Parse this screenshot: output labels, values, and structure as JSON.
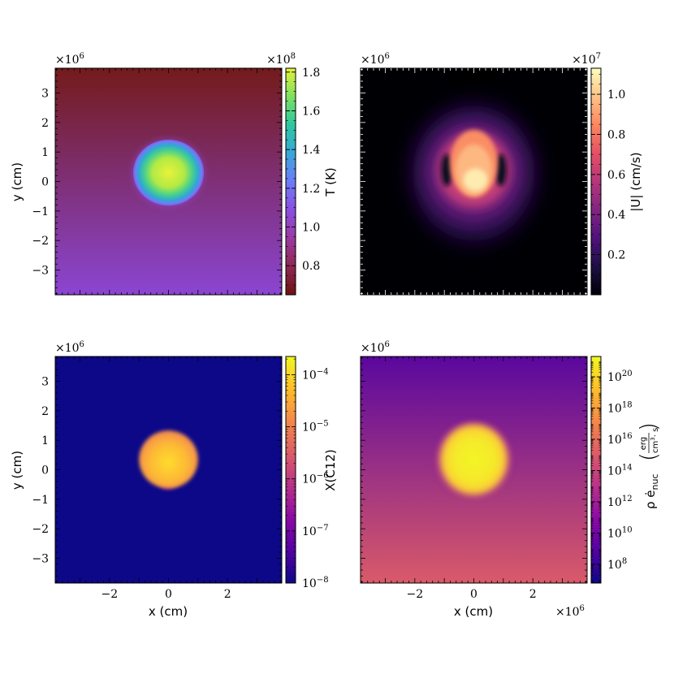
{
  "chart_data": [
    {
      "type": "heatmap",
      "panel": "top-left",
      "quantity": "temperature",
      "x_range": [
        -3.84,
        3.84
      ],
      "y_range": [
        -3.84,
        3.84
      ],
      "x_exponent_label": "",
      "y_exponent_label": "×10",
      "y_exponent_power": "6",
      "ylabel": "y  (cm)",
      "xlabel": "",
      "xticks": [],
      "yticks": [
        "−3",
        "−2",
        "−1",
        "0",
        "1",
        "2",
        "3"
      ],
      "colorbar": {
        "label": "T  (K)",
        "exponent_label": "×10",
        "exponent_power": "8",
        "scale": "linear",
        "range": [
          0.65,
          1.82
        ],
        "ticks": [
          "0.8",
          "1.0",
          "1.2",
          "1.4",
          "1.6",
          "1.8"
        ],
        "colormap": [
          "#6e1212",
          "#8e2a52",
          "#9a3aa0",
          "#8a50e0",
          "#6c7cf8",
          "#3aa6d8",
          "#2cc8a0",
          "#7ee060",
          "#e4f23a"
        ]
      },
      "background": {
        "top": "#731b1b",
        "bottom": "#8b45d2"
      },
      "blob": {
        "center": [
          0.0,
          0.3
        ],
        "radius": [
          1.2,
          1.12
        ],
        "peak": 1.8
      }
    },
    {
      "type": "heatmap",
      "panel": "top-right",
      "quantity": "velocity magnitude",
      "x_range": [
        -3.84,
        3.84
      ],
      "y_range": [
        -3.84,
        3.84
      ],
      "x_exponent_label": "",
      "y_exponent_label": "×10",
      "y_exponent_power": "6",
      "ylabel": "",
      "xlabel": "",
      "xticks": [],
      "yticks": [],
      "colorbar": {
        "label": "|U|  (cm/s)",
        "exponent_label": "×10",
        "exponent_power": "7",
        "scale": "linear",
        "range": [
          0.0,
          1.13
        ],
        "ticks": [
          "0.2",
          "0.4",
          "0.6",
          "0.8",
          "1.0"
        ],
        "colormap": [
          "#000004",
          "#1c1044",
          "#4f127b",
          "#812581",
          "#b5367a",
          "#e55064",
          "#fb8761",
          "#fec287",
          "#fcfdbf"
        ]
      },
      "background": {
        "top": "#000004",
        "bottom": "#000004"
      },
      "blob": {
        "center": [
          0.0,
          0.5
        ],
        "radius": [
          0.9,
          1.2
        ],
        "peak": 1.1
      }
    },
    {
      "type": "heatmap",
      "panel": "bottom-left",
      "quantity": "carbon-12 mass fraction",
      "x_range": [
        -3.84,
        3.84
      ],
      "y_range": [
        -3.84,
        3.84
      ],
      "x_exponent_label": "",
      "y_exponent_label": "×10",
      "y_exponent_power": "6",
      "ylabel": "y  (cm)",
      "xlabel": "x  (cm)",
      "xticks": [
        "−2",
        "0",
        "2"
      ],
      "yticks": [
        "−3",
        "−2",
        "−1",
        "0",
        "1",
        "2",
        "3"
      ],
      "colorbar": {
        "label": "X(C12)",
        "scale": "log",
        "range_exp": [
          -8,
          -3.65
        ],
        "tick_base": "10",
        "tick_powers": [
          "−4",
          "−5",
          "−6",
          "−7",
          "−8"
        ],
        "colormap": [
          "#0d0887",
          "#5402a3",
          "#8b0aa5",
          "#b93289",
          "#db5c68",
          "#f48849",
          "#febd2a",
          "#f0f921"
        ]
      },
      "background": {
        "top": "#0d0887",
        "bottom": "#0d0887"
      },
      "blob": {
        "center": [
          0.0,
          0.35
        ],
        "radius": [
          1.0,
          0.98
        ],
        "peak": 2e-05
      }
    },
    {
      "type": "heatmap",
      "panel": "bottom-right",
      "quantity": "nuclear energy generation rate",
      "x_range": [
        -3.84,
        3.84
      ],
      "y_range": [
        -3.84,
        3.84
      ],
      "x_exponent_label": "×10",
      "x_exponent_power": "6",
      "y_exponent_label": "×10",
      "y_exponent_power": "6",
      "ylabel": "",
      "xlabel": "x  (cm)",
      "xticks": [
        "−2",
        "0",
        "2"
      ],
      "yticks": [],
      "colorbar": {
        "label_main": "ρ ė",
        "label_sub": "nuc",
        "label_unit_num": "erg",
        "label_unit_den_base": "cm",
        "label_unit_den_sup": "3",
        "label_unit_den_tail": "· s",
        "scale": "log",
        "range_exp": [
          6.8,
          21.3
        ],
        "tick_base": "10",
        "tick_powers": [
          "20",
          "18",
          "16",
          "14",
          "12",
          "10",
          "8"
        ],
        "colormap": [
          "#0d0887",
          "#5402a3",
          "#8b0aa5",
          "#b93289",
          "#db5c68",
          "#f48849",
          "#febd2a",
          "#f0f921"
        ]
      },
      "background": {
        "top": "#5a079f",
        "bottom": "#d95a69"
      },
      "blob": {
        "center": [
          0.0,
          0.35
        ],
        "radius": [
          1.15,
          1.2
        ],
        "peak": 1e+20
      }
    }
  ]
}
